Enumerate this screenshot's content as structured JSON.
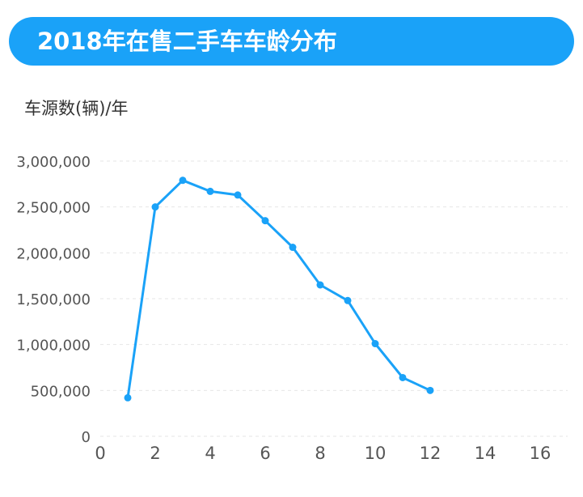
{
  "chart_data": {
    "type": "line",
    "title": "2018年在售二手车车龄分布",
    "ylabel": "车源数(辆)/年",
    "xlabel": "",
    "xlim": [
      0,
      17
    ],
    "ylim": [
      0,
      3000000
    ],
    "xticks": [
      0,
      2,
      4,
      6,
      8,
      10,
      12,
      14,
      16
    ],
    "yticks": [
      0,
      500000,
      1000000,
      1500000,
      2000000,
      2500000,
      3000000
    ],
    "ytick_labels": [
      "0",
      "500,000",
      "1,000,000",
      "1,500,000",
      "2,000,000",
      "2,500,000",
      "3,000,000"
    ],
    "grid": true,
    "color": "#1aa2f8",
    "series": [
      {
        "x": [
          1,
          2,
          3,
          4,
          5,
          6,
          7,
          8,
          9,
          10,
          11,
          12
        ],
        "y": [
          420000,
          2500000,
          2790000,
          2670000,
          2630000,
          2350000,
          2060000,
          1650000,
          1480000,
          1010000,
          640000,
          500000
        ]
      }
    ]
  }
}
